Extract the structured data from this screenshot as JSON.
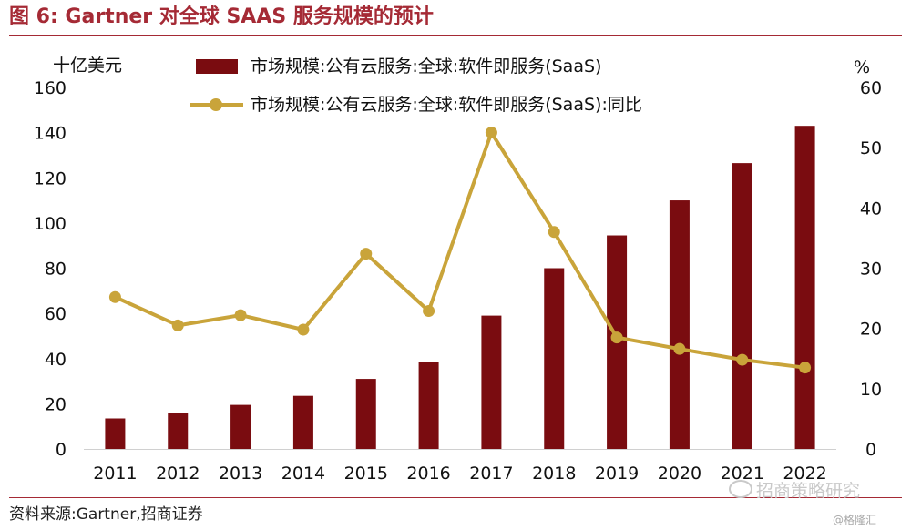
{
  "figure": {
    "title": "图 6:  Gartner 对全球 SAAS 服务规模的预计",
    "source": "资料来源:Gartner,招商证券",
    "watermark": "招商策略研究",
    "watermark_small": "@格隆汇"
  },
  "colors": {
    "accent": "#a52a35",
    "bar": "#7a0c10",
    "line": "#c9a43a"
  },
  "chart_data": {
    "type": "bar",
    "categories": [
      "2011",
      "2012",
      "2013",
      "2014",
      "2015",
      "2016",
      "2017",
      "2018",
      "2019",
      "2020",
      "2021",
      "2022"
    ],
    "series": [
      {
        "name": "市场规模:公有云服务:全球:软件即服务(SaaS)",
        "type": "bar",
        "axis": "left",
        "values": [
          13.5,
          16,
          19.5,
          23.5,
          31,
          38.5,
          59,
          80,
          94.5,
          110,
          126.5,
          143
        ]
      },
      {
        "name": "市场规模:公有云服务:全球:软件即服务(SaaS):同比",
        "type": "line",
        "axis": "right",
        "values": [
          25.2,
          20.5,
          22.2,
          19.8,
          32.4,
          22.9,
          52.5,
          36,
          18.5,
          16.6,
          14.8,
          13.5
        ]
      }
    ],
    "y_left": {
      "label": "十亿美元",
      "range": [
        0,
        160
      ],
      "ticks": [
        0,
        20,
        40,
        60,
        80,
        100,
        120,
        140,
        160
      ]
    },
    "y_right": {
      "label": "%",
      "range": [
        0,
        60
      ],
      "ticks": [
        0,
        10,
        20,
        30,
        40,
        50,
        60
      ]
    },
    "grid": false,
    "legend_position": "top-center"
  }
}
